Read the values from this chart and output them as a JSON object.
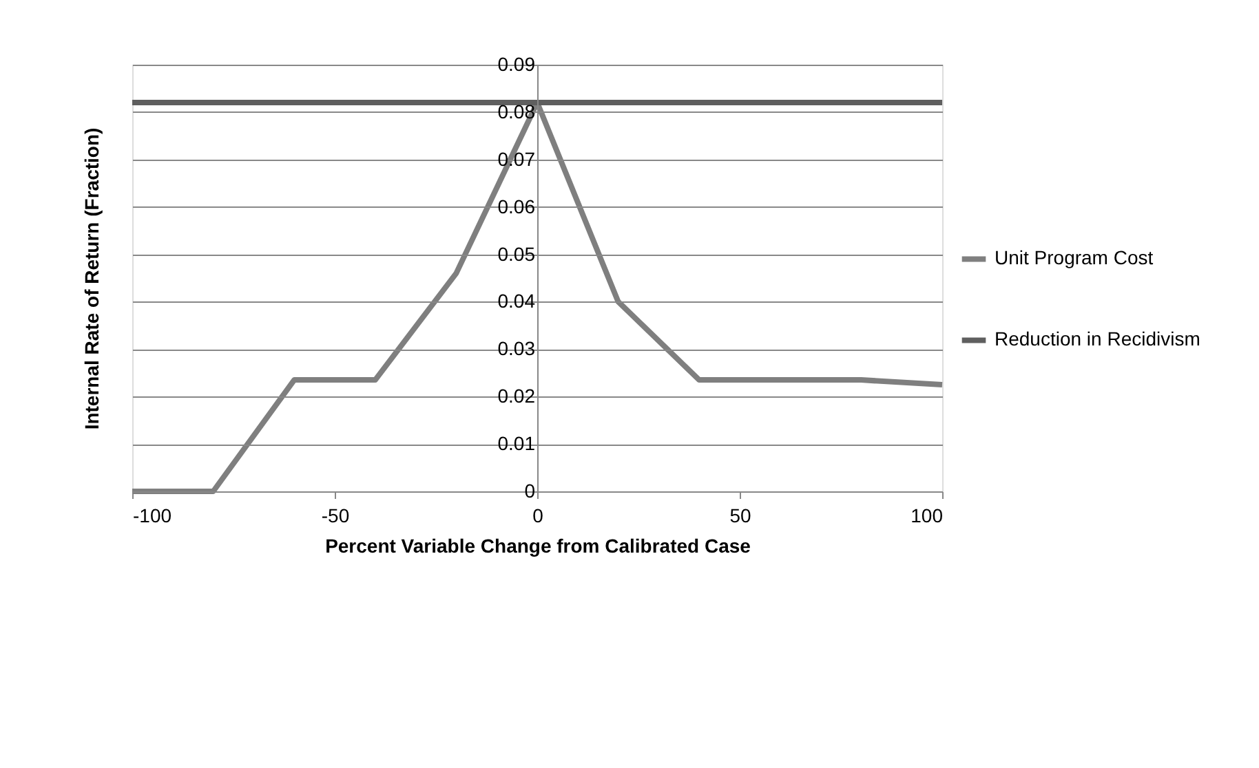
{
  "chart_data": {
    "type": "line",
    "xlabel": "Percent Variable Change from Calibrated Case",
    "ylabel": "Internal Rate of Return (Fraction)",
    "x": [
      -100,
      -80,
      -60,
      -40,
      -20,
      0,
      20,
      40,
      60,
      80,
      100
    ],
    "series": [
      {
        "name": "Unit Program Cost",
        "color": "#7f7f7f",
        "values": [
          0,
          0,
          0.0235,
          0.0235,
          0.046,
          0.082,
          0.04,
          0.0235,
          0.0235,
          0.0235,
          0.0225
        ]
      },
      {
        "name": "Reduction in Recidivism",
        "color": "#5f5f5f",
        "values": [
          0.082,
          0.082,
          0.082,
          0.082,
          0.082,
          0.082,
          0.082,
          0.082,
          0.082,
          0.082,
          0.082
        ]
      }
    ],
    "xlim": [
      -100,
      100
    ],
    "xticks": [
      -100,
      -50,
      0,
      50,
      100
    ],
    "ylim": [
      0,
      0.09
    ],
    "yticks": [
      0,
      0.01,
      0.02,
      0.03,
      0.04,
      0.05,
      0.06,
      0.07,
      0.08,
      0.09
    ],
    "grid": "y",
    "legend": "right",
    "marker": "none",
    "line_style": "solid"
  }
}
